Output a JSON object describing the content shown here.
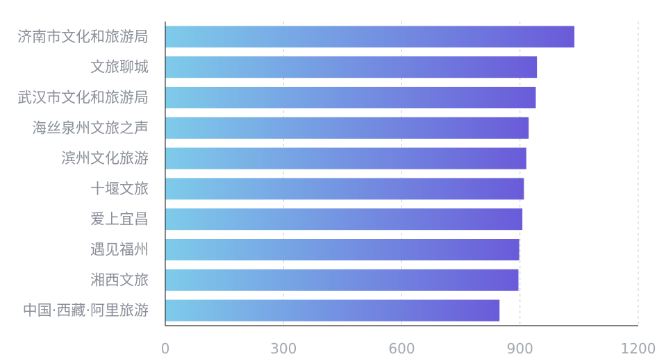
{
  "chart_data": {
    "type": "bar",
    "orientation": "horizontal",
    "categories": [
      "济南市文化和旅游局",
      "文旅聊城",
      "武汉市文化和旅游局",
      "海丝泉州文旅之声",
      "滨州文化旅游",
      "十堰文旅",
      "爱上宜昌",
      "遇见福州",
      "湘西文旅",
      "中国·西藏·阿里旅游"
    ],
    "values": [
      1038,
      943,
      940,
      922,
      916,
      910,
      906,
      898,
      896,
      848
    ],
    "x_ticks": [
      "0",
      "300",
      "600",
      "900",
      "1200"
    ],
    "xlim": [
      0,
      1200
    ],
    "grid": "vertical dashed",
    "title": "",
    "xlabel": "",
    "ylabel": "",
    "colors": {
      "bar_start": "#7ecbea",
      "bar_end": "#6a5bd9",
      "grid": "#c9ccd1",
      "axis": "#333333"
    }
  }
}
